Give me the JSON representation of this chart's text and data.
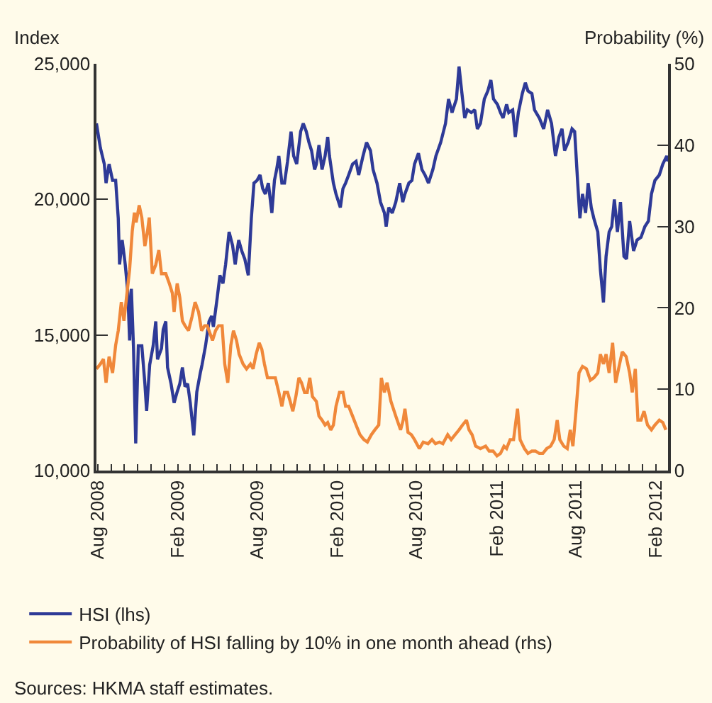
{
  "chart_data": {
    "type": "line",
    "ylabel": "Index",
    "y2label": "Probability (%)",
    "xlim": [
      "2008-07-29",
      "2012-02-29"
    ],
    "xticks": [
      {
        "value": "2008-08-01",
        "label": "Aug 2008"
      },
      {
        "value": "2009-02-01",
        "label": "Feb 2009"
      },
      {
        "value": "2009-08-01",
        "label": "Aug 2009"
      },
      {
        "value": "2010-02-01",
        "label": "Feb 2010"
      },
      {
        "value": "2010-08-01",
        "label": "Aug 2010"
      },
      {
        "value": "2011-02-01",
        "label": "Feb 2011"
      },
      {
        "value": "2011-08-01",
        "label": "Aug 2011"
      },
      {
        "value": "2012-02-01",
        "label": "Feb 2012"
      }
    ],
    "ylim": [
      10000,
      25000
    ],
    "yticks": [
      {
        "value": 10000,
        "label": "10,000"
      },
      {
        "value": 15000,
        "label": "15,000"
      },
      {
        "value": 20000,
        "label": "20,000"
      },
      {
        "value": 25000,
        "label": "25,000"
      }
    ],
    "y2lim": [
      0,
      50
    ],
    "y2ticks": [
      0,
      10,
      20,
      30,
      40,
      50
    ],
    "grid": false,
    "legend": "bottom",
    "marker": "none",
    "line_style": "solid",
    "annotations": [
      "Sources: HKMA staff estimates."
    ],
    "series": [
      {
        "name": "HSI (lhs)",
        "color": "#2e3a97",
        "axis": "y",
        "x": [
          "2008-07-29",
          "2008-08-07",
          "2008-08-16",
          "2008-08-20",
          "2008-08-27",
          "2008-09-04",
          "2008-09-11",
          "2008-09-17",
          "2008-09-20",
          "2008-09-26",
          "2008-10-03",
          "2008-10-09",
          "2008-10-13",
          "2008-10-17",
          "2008-10-22",
          "2008-10-27",
          "2008-11-02",
          "2008-11-10",
          "2008-11-17",
          "2008-11-21",
          "2008-11-28",
          "2008-12-06",
          "2008-12-12",
          "2008-12-16",
          "2008-12-25",
          "2008-12-29",
          "2009-01-04",
          "2009-01-08",
          "2009-01-16",
          "2009-01-23",
          "2009-01-30",
          "2009-02-05",
          "2009-02-11",
          "2009-02-17",
          "2009-02-23",
          "2009-03-01",
          "2009-03-09",
          "2009-03-16",
          "2009-03-24",
          "2009-03-28",
          "2009-04-05",
          "2009-04-13",
          "2009-04-19",
          "2009-04-23",
          "2009-05-02",
          "2009-05-08",
          "2009-05-15",
          "2009-05-21",
          "2009-05-29",
          "2009-06-06",
          "2009-06-12",
          "2009-06-20",
          "2009-06-27",
          "2009-07-04",
          "2009-07-12",
          "2009-07-19",
          "2009-07-25",
          "2009-08-01",
          "2009-08-08",
          "2009-08-14",
          "2009-08-20",
          "2009-08-27",
          "2009-09-04",
          "2009-09-10",
          "2009-09-15",
          "2009-09-20",
          "2009-09-27",
          "2009-10-03",
          "2009-10-10",
          "2009-10-18",
          "2009-10-24",
          "2009-10-31",
          "2009-11-09",
          "2009-11-15",
          "2009-11-22",
          "2009-11-28",
          "2009-12-04",
          "2009-12-11",
          "2009-12-15",
          "2009-12-21",
          "2009-12-28",
          "2010-01-04",
          "2010-01-10",
          "2010-01-14",
          "2010-01-23",
          "2010-01-29",
          "2010-02-08",
          "2010-02-14",
          "2010-02-20",
          "2010-02-27",
          "2010-03-08",
          "2010-03-16",
          "2010-03-22",
          "2010-04-01",
          "2010-04-09",
          "2010-04-18",
          "2010-04-24",
          "2010-05-03",
          "2010-05-11",
          "2010-05-20",
          "2010-05-24",
          "2010-05-30",
          "2010-06-07",
          "2010-06-15",
          "2010-06-24",
          "2010-07-01",
          "2010-07-06",
          "2010-07-15",
          "2010-07-22",
          "2010-07-28",
          "2010-08-06",
          "2010-08-14",
          "2010-08-21",
          "2010-08-29",
          "2010-09-08",
          "2010-09-15",
          "2010-09-26",
          "2010-10-07",
          "2010-10-14",
          "2010-10-22",
          "2010-11-01",
          "2010-11-07",
          "2010-11-13",
          "2010-11-20",
          "2010-11-26",
          "2010-12-05",
          "2010-12-13",
          "2010-12-19",
          "2010-12-26",
          "2011-01-04",
          "2011-01-12",
          "2011-01-19",
          "2011-01-25",
          "2011-02-03",
          "2011-02-10",
          "2011-02-16",
          "2011-02-24",
          "2011-03-01",
          "2011-03-10",
          "2011-03-16",
          "2011-03-23",
          "2011-04-01",
          "2011-04-08",
          "2011-04-14",
          "2011-04-23",
          "2011-04-29",
          "2011-05-10",
          "2011-05-20",
          "2011-05-29",
          "2011-06-07",
          "2011-06-16",
          "2011-06-24",
          "2011-07-01",
          "2011-07-07",
          "2011-07-15",
          "2011-07-24",
          "2011-07-30",
          "2011-08-06",
          "2011-08-11",
          "2011-08-17",
          "2011-08-24",
          "2011-08-30",
          "2011-09-06",
          "2011-09-12",
          "2011-09-21",
          "2011-09-27",
          "2011-10-04",
          "2011-10-10",
          "2011-10-17",
          "2011-10-23",
          "2011-10-29",
          "2011-11-05",
          "2011-11-12",
          "2011-11-20",
          "2011-11-26",
          "2011-12-03",
          "2011-12-12",
          "2011-12-20",
          "2011-12-29",
          "2012-01-07",
          "2012-01-15",
          "2012-01-22",
          "2012-01-30",
          "2012-02-09",
          "2012-02-17",
          "2012-02-26",
          "2012-02-29"
        ],
        "values": [
          22800,
          21900,
          21300,
          20600,
          21300,
          20700,
          20700,
          19300,
          17600,
          18500,
          17600,
          16550,
          14800,
          16700,
          14500,
          11000,
          14600,
          14600,
          13200,
          12200,
          13900,
          14600,
          15500,
          14100,
          14500,
          15200,
          15500,
          13800,
          13200,
          12500,
          12900,
          13200,
          13800,
          13100,
          13200,
          12500,
          11300,
          12900,
          13600,
          13900,
          14600,
          15500,
          15700,
          15300,
          16400,
          17200,
          16900,
          17600,
          18800,
          18300,
          17600,
          18500,
          18100,
          17800,
          17200,
          19300,
          20600,
          20700,
          20900,
          20400,
          20200,
          20600,
          19500,
          20700,
          21100,
          21600,
          20600,
          20600,
          21400,
          22500,
          21600,
          21300,
          22500,
          22800,
          22500,
          22100,
          21800,
          21100,
          21300,
          22000,
          21100,
          21600,
          22300,
          21600,
          20600,
          20200,
          19700,
          20400,
          20600,
          20900,
          21300,
          21400,
          20900,
          21600,
          22100,
          21800,
          21100,
          20600,
          19900,
          19500,
          19000,
          19700,
          19500,
          19900,
          20600,
          19900,
          20200,
          20600,
          20700,
          21300,
          21700,
          21100,
          20900,
          20600,
          21100,
          21600,
          22100,
          22800,
          23700,
          23200,
          23700,
          24900,
          24000,
          23000,
          23300,
          23200,
          23300,
          22600,
          22800,
          23700,
          24000,
          24400,
          23700,
          23500,
          23200,
          23000,
          23500,
          23200,
          23300,
          22300,
          23200,
          23900,
          24300,
          24000,
          23900,
          23300,
          23000,
          22600,
          23300,
          22800,
          21600,
          22300,
          22600,
          21800,
          22100,
          22600,
          22500,
          20600,
          19300,
          20200,
          19500,
          20600,
          19700,
          19300,
          18800,
          17400,
          16200,
          17900,
          18800,
          19000,
          20000,
          18800,
          19900,
          17900,
          17800,
          19200,
          18100,
          18500,
          18600,
          19000,
          19200,
          20200,
          20700,
          20900,
          21300,
          21600,
          21400
        ]
      },
      {
        "name": "Probability of HSI falling by 10% in one month ahead (rhs)",
        "color": "#f0883a",
        "axis": "y2",
        "x": [
          "2008-07-29",
          "2008-08-07",
          "2008-08-14",
          "2008-08-20",
          "2008-08-27",
          "2008-09-04",
          "2008-09-11",
          "2008-09-17",
          "2008-09-24",
          "2008-09-30",
          "2008-10-07",
          "2008-10-13",
          "2008-10-19",
          "2008-10-24",
          "2008-10-28",
          "2008-11-04",
          "2008-11-10",
          "2008-11-17",
          "2008-11-23",
          "2008-11-27",
          "2008-12-04",
          "2008-12-12",
          "2008-12-19",
          "2008-12-25",
          "2009-01-04",
          "2009-01-12",
          "2009-01-19",
          "2009-01-23",
          "2009-01-30",
          "2009-02-05",
          "2009-02-11",
          "2009-02-17",
          "2009-02-25",
          "2009-03-05",
          "2009-03-12",
          "2009-03-20",
          "2009-03-27",
          "2009-04-03",
          "2009-04-09",
          "2009-04-15",
          "2009-04-21",
          "2009-04-28",
          "2009-05-05",
          "2009-05-13",
          "2009-05-19",
          "2009-05-26",
          "2009-06-02",
          "2009-06-08",
          "2009-06-15",
          "2009-06-21",
          "2009-06-30",
          "2009-07-08",
          "2009-07-17",
          "2009-07-23",
          "2009-07-30",
          "2009-08-06",
          "2009-08-12",
          "2009-08-18",
          "2009-08-25",
          "2009-09-03",
          "2009-09-12",
          "2009-09-20",
          "2009-09-27",
          "2009-10-03",
          "2009-10-10",
          "2009-10-16",
          "2009-10-22",
          "2009-10-29",
          "2009-11-05",
          "2009-11-11",
          "2009-11-18",
          "2009-11-24",
          "2009-11-30",
          "2009-12-06",
          "2009-12-15",
          "2009-12-21",
          "2009-12-28",
          "2010-01-04",
          "2010-01-10",
          "2010-01-17",
          "2010-01-23",
          "2010-01-29",
          "2010-02-06",
          "2010-02-14",
          "2010-02-20",
          "2010-02-27",
          "2010-03-08",
          "2010-03-16",
          "2010-03-25",
          "2010-04-03",
          "2010-04-11",
          "2010-04-20",
          "2010-04-28",
          "2010-05-07",
          "2010-05-13",
          "2010-05-20",
          "2010-05-26",
          "2010-06-04",
          "2010-06-15",
          "2010-06-26",
          "2010-07-02",
          "2010-07-06",
          "2010-07-13",
          "2010-07-21",
          "2010-07-28",
          "2010-08-08",
          "2010-08-17",
          "2010-08-28",
          "2010-09-06",
          "2010-09-14",
          "2010-09-23",
          "2010-10-01",
          "2010-10-12",
          "2010-10-20",
          "2010-10-29",
          "2010-11-07",
          "2010-11-15",
          "2010-11-24",
          "2010-11-30",
          "2010-12-07",
          "2010-12-15",
          "2010-12-26",
          "2011-01-07",
          "2011-01-15",
          "2011-01-24",
          "2011-02-02",
          "2011-02-10",
          "2011-02-18",
          "2011-02-24",
          "2011-03-04",
          "2011-03-12",
          "2011-03-21",
          "2011-03-27",
          "2011-04-06",
          "2011-04-14",
          "2011-04-23",
          "2011-05-01",
          "2011-05-10",
          "2011-05-18",
          "2011-05-27",
          "2011-06-05",
          "2011-06-13",
          "2011-06-20",
          "2011-06-26",
          "2011-07-05",
          "2011-07-13",
          "2011-07-20",
          "2011-07-26",
          "2011-08-02",
          "2011-08-09",
          "2011-08-17",
          "2011-08-26",
          "2011-09-04",
          "2011-09-12",
          "2011-09-21",
          "2011-09-27",
          "2011-10-04",
          "2011-10-10",
          "2011-10-17",
          "2011-10-25",
          "2011-11-01",
          "2011-11-10",
          "2011-11-16",
          "2011-11-25",
          "2011-12-03",
          "2011-12-09",
          "2011-12-16",
          "2011-12-22",
          "2011-12-29",
          "2012-01-05",
          "2012-01-13",
          "2012-01-22",
          "2012-01-30",
          "2012-02-09",
          "2012-02-17",
          "2012-02-24"
        ],
        "values": [
          12.5,
          13.1,
          13.7,
          10.8,
          14.0,
          12.0,
          15.4,
          17.2,
          20.7,
          18.4,
          21.8,
          24.7,
          29.4,
          31.7,
          30.5,
          32.6,
          31.1,
          27.6,
          29.4,
          31.1,
          24.2,
          25.3,
          27.1,
          24.2,
          24.2,
          23.0,
          21.8,
          19.5,
          23.0,
          21.3,
          18.4,
          17.8,
          17.2,
          18.9,
          20.7,
          19.5,
          17.2,
          17.8,
          17.8,
          16.9,
          16.0,
          17.2,
          17.8,
          17.8,
          13.1,
          10.8,
          15.4,
          17.2,
          16.0,
          14.3,
          13.1,
          12.5,
          13.1,
          12.5,
          14.3,
          15.7,
          14.9,
          13.1,
          11.4,
          11.4,
          11.4,
          9.6,
          7.9,
          9.6,
          9.6,
          8.5,
          7.3,
          9.1,
          11.4,
          10.8,
          9.6,
          9.6,
          11.4,
          9.1,
          8.5,
          6.7,
          6.2,
          5.6,
          5.9,
          5.0,
          5.6,
          7.9,
          9.6,
          9.6,
          7.9,
          7.9,
          6.7,
          5.6,
          4.4,
          3.8,
          3.5,
          4.4,
          5.0,
          5.6,
          11.4,
          9.6,
          10.8,
          8.5,
          6.7,
          5.0,
          6.2,
          7.6,
          4.7,
          4.4,
          3.8,
          2.7,
          3.5,
          3.3,
          3.8,
          3.3,
          3.5,
          3.3,
          4.4,
          3.8,
          4.4,
          5.0,
          5.6,
          6.2,
          5.0,
          4.4,
          3.0,
          2.7,
          3.0,
          2.4,
          2.4,
          1.8,
          2.1,
          3.0,
          2.7,
          3.8,
          3.8,
          7.6,
          3.8,
          2.7,
          2.1,
          2.4,
          2.4,
          2.1,
          2.1,
          2.7,
          3.0,
          3.8,
          6.2,
          3.8,
          3.0,
          2.7,
          5.0,
          3.0,
          7.3,
          12.0,
          12.8,
          12.5,
          11.1,
          11.4,
          12.0,
          14.3,
          13.1,
          14.3,
          12.0,
          15.7,
          10.8,
          13.1,
          14.6,
          14.0,
          12.0,
          9.6,
          12.5,
          6.2,
          6.2,
          7.3,
          5.6,
          5.0,
          5.6,
          6.2,
          5.9,
          5.0
        ]
      }
    ]
  }
}
